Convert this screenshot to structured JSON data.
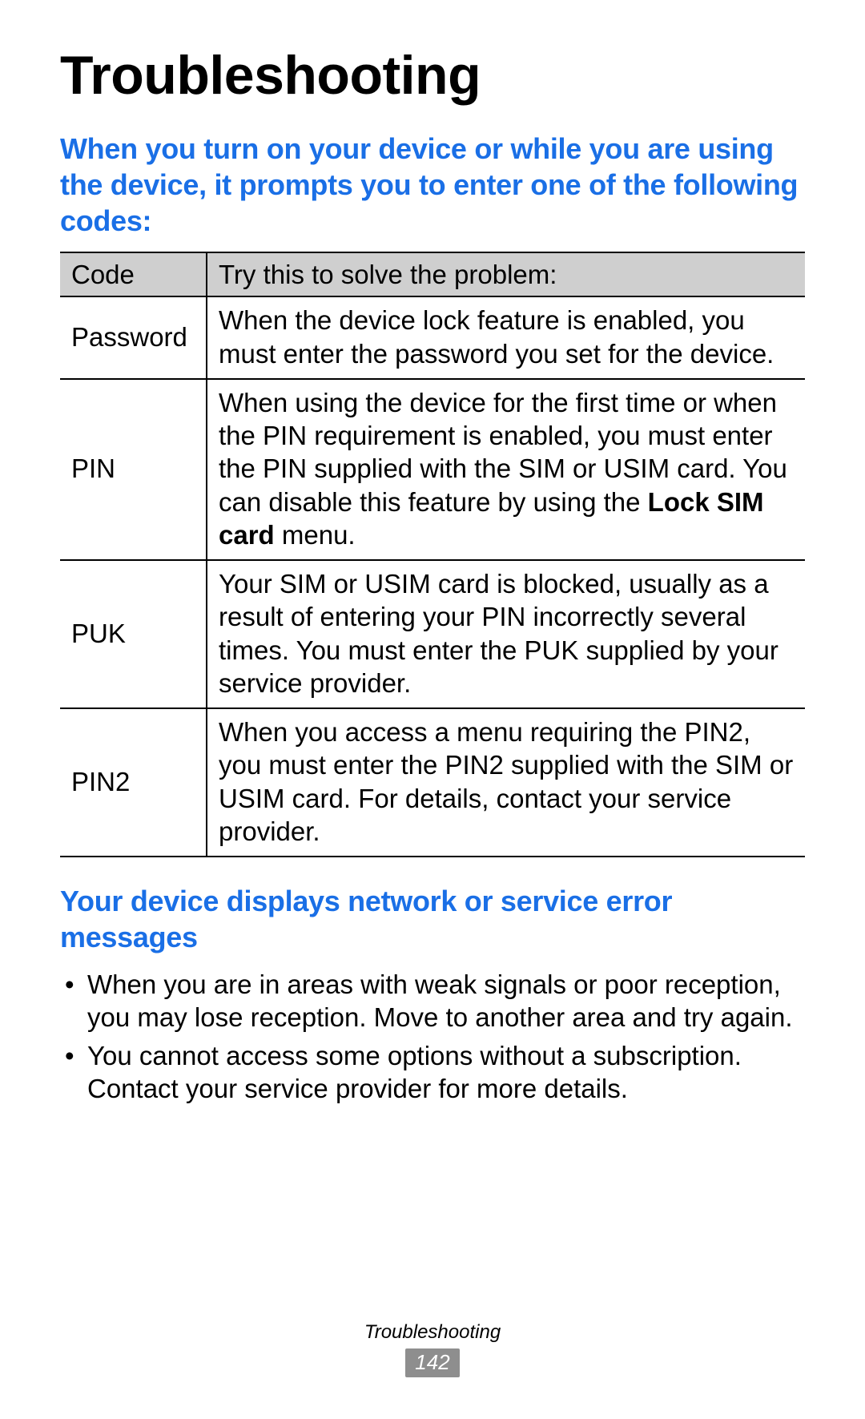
{
  "title": "Troubleshooting",
  "section1": {
    "heading": "When you turn on your device or while you are using the device, it prompts you to enter one of the following codes:",
    "heading_color": "#1a6fe6"
  },
  "table": {
    "header_bg": "#cfcfcf",
    "border_color": "#000000",
    "col_code_width": 183,
    "columns": [
      "Code",
      "Try this to solve the problem:"
    ],
    "rows": [
      {
        "code": "Password",
        "solution": "When the device lock feature is enabled, you must enter the password you set for the device."
      },
      {
        "code": "PIN",
        "solution_pre": "When using the device for the first time or when the PIN requirement is enabled, you must enter the PIN supplied with the SIM or USIM card. You can disable this feature by using the ",
        "solution_bold": "Lock SIM card",
        "solution_post": " menu."
      },
      {
        "code": "PUK",
        "solution": "Your SIM or USIM card is blocked, usually as a result of entering your PIN incorrectly several times. You must enter the PUK supplied by your service provider."
      },
      {
        "code": "PIN2",
        "solution": "When you access a menu requiring the PIN2, you must enter the PIN2 supplied with the SIM or USIM card. For details, contact your service provider."
      }
    ]
  },
  "section2": {
    "heading": "Your device displays network or service error messages",
    "heading_color": "#1a6fe6",
    "bullets": [
      "When you are in areas with weak signals or poor reception, you may lose reception. Move to another area and try again.",
      "You cannot access some options without a subscription. Contact your service provider for more details."
    ]
  },
  "footer": {
    "label": "Troubleshooting",
    "page_number": "142",
    "badge_bg": "#8e8e8e",
    "badge_fg": "#ffffff"
  },
  "page_bg": "#ffffff",
  "text_color": "#000000"
}
